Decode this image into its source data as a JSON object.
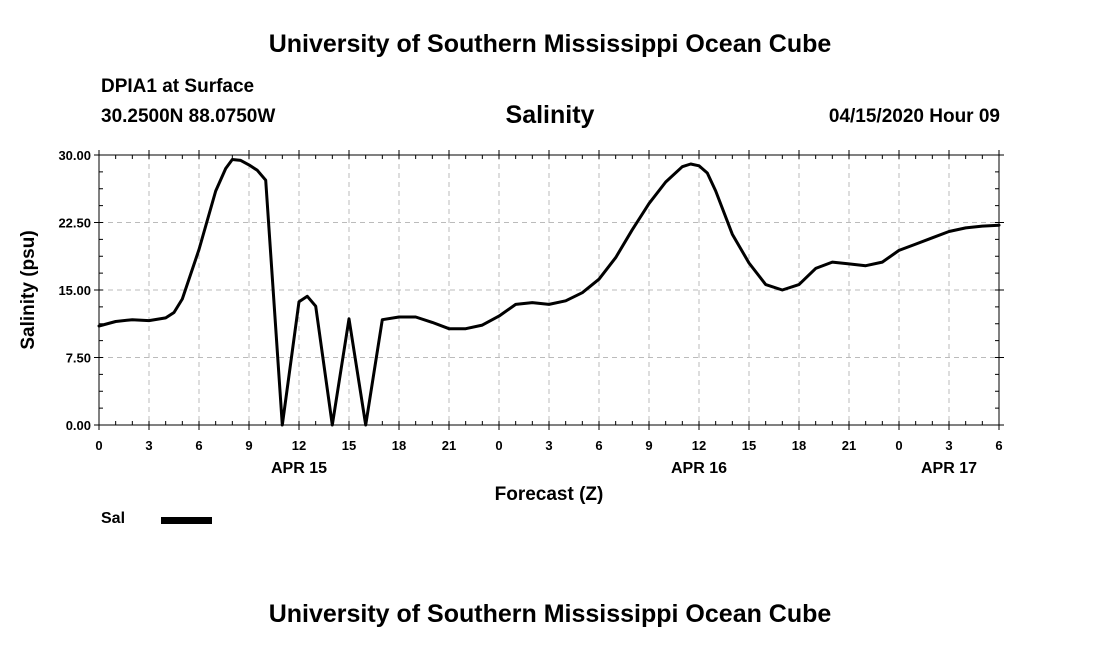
{
  "header": {
    "title": "University of Southern Mississippi Ocean Cube",
    "station": "DPIA1 at Surface",
    "coordinates": "30.2500N 88.0750W",
    "variable": "Salinity",
    "timestamp": "04/15/2020 Hour 09"
  },
  "footer": {
    "title": "University of Southern Mississippi Ocean Cube"
  },
  "legend": {
    "label": "Sal",
    "color": "#000000"
  },
  "chart_data": {
    "type": "line",
    "title": "Salinity",
    "xlabel": "Forecast (Z)",
    "ylabel": "Salinity (psu)",
    "ylim": [
      0,
      30
    ],
    "xlim": [
      0,
      54
    ],
    "yticks": [
      "0.00",
      "7.50",
      "15.00",
      "22.50",
      "30.00"
    ],
    "xticks": [
      "0",
      "3",
      "6",
      "9",
      "12",
      "15",
      "18",
      "21",
      "0",
      "3",
      "6",
      "9",
      "12",
      "15",
      "18",
      "21",
      "0",
      "3",
      "6"
    ],
    "date_labels": [
      {
        "label": "APR 15",
        "hour": 12
      },
      {
        "label": "APR 16",
        "hour": 36
      },
      {
        "label": "APR 17",
        "hour": 51
      }
    ],
    "grid": true,
    "legend_position": "bottom-left",
    "series": [
      {
        "name": "Sal",
        "x": [
          0,
          1,
          2,
          3,
          4,
          4.5,
          5,
          6,
          7,
          7.6,
          8,
          8.5,
          9,
          9.5,
          10,
          11,
          12,
          12.5,
          13,
          14,
          15,
          16,
          17,
          18,
          19,
          20,
          21,
          22,
          23,
          24,
          25,
          26,
          27,
          28,
          29,
          30,
          31,
          32,
          33,
          34,
          35,
          35.5,
          36,
          36.5,
          37,
          38,
          39,
          40,
          41,
          42,
          43,
          44,
          45,
          46,
          47,
          48,
          49,
          50,
          51,
          52,
          53,
          54
        ],
        "values": [
          11.0,
          11.5,
          11.7,
          11.6,
          11.9,
          12.5,
          14.0,
          19.5,
          26.0,
          28.5,
          29.5,
          29.4,
          28.9,
          28.3,
          27.2,
          0.0,
          13.7,
          14.3,
          13.2,
          0.0,
          11.8,
          0.0,
          11.7,
          12.0,
          12.0,
          11.4,
          10.7,
          10.7,
          11.1,
          12.1,
          13.4,
          13.6,
          13.4,
          13.8,
          14.7,
          16.2,
          18.6,
          21.7,
          24.6,
          27.0,
          28.7,
          29.0,
          28.8,
          28.0,
          26.0,
          21.2,
          18.0,
          15.6,
          15.0,
          15.6,
          17.4,
          18.1,
          17.9,
          17.7,
          18.1,
          19.4,
          20.1,
          20.8,
          21.5,
          21.9,
          22.1,
          22.2
        ]
      }
    ]
  }
}
